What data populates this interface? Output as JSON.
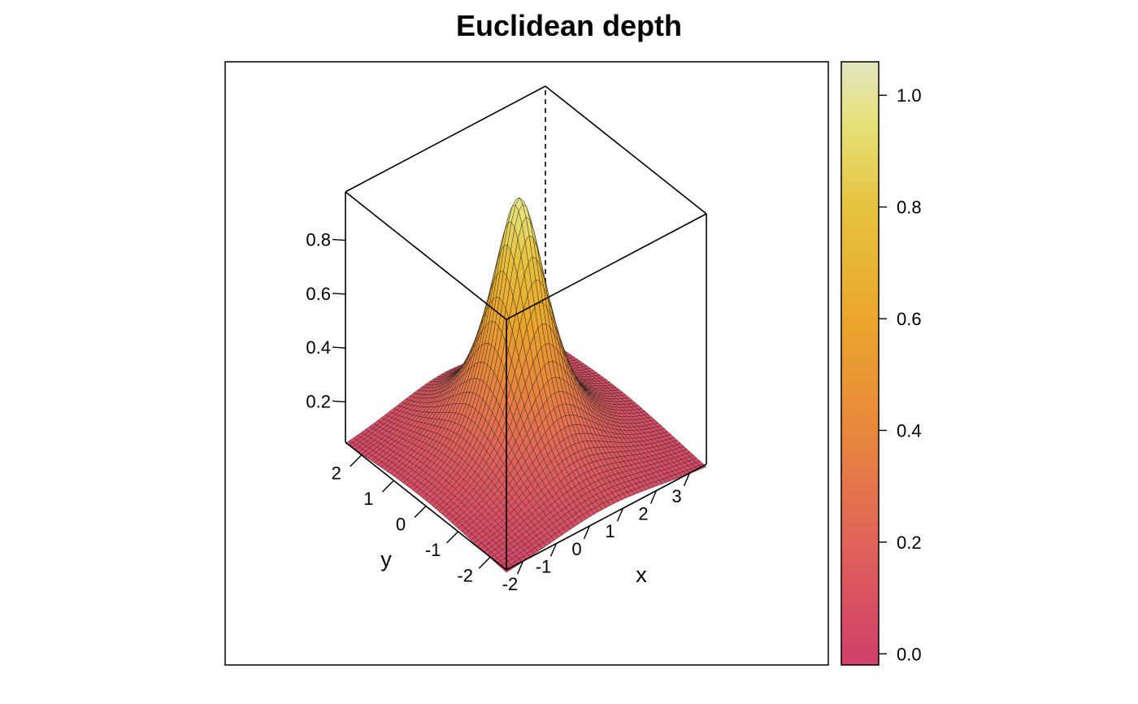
{
  "chart_data": {
    "type": "surface3d",
    "title": "Euclidean depth",
    "xlabel": "x",
    "ylabel": "y",
    "zlabel": "",
    "x_range": [
      -2.5,
      3.5
    ],
    "y_range": [
      -2.5,
      2.5
    ],
    "z_range": [
      0.05,
      0.98
    ],
    "x_ticks": [
      -2,
      -1,
      0,
      1,
      2,
      3
    ],
    "y_ticks": [
      -2,
      -1,
      0,
      1,
      2
    ],
    "z_ticks": [
      0.2,
      0.4,
      0.6,
      0.8
    ],
    "x_tick_labels": [
      "-2",
      "-1",
      "0",
      "1",
      "2",
      "3"
    ],
    "y_tick_labels": [
      "-2",
      "-1",
      "0",
      "1",
      "2"
    ],
    "z_tick_labels": [
      "0.2",
      "0.4",
      "0.6",
      "0.8"
    ],
    "surface": {
      "description_function": "Euclidean depth",
      "center": [
        0.5,
        0.2
      ],
      "peak": 0.98,
      "grid_size": 50
    },
    "colorbar": {
      "ticks": [
        0.0,
        0.2,
        0.4,
        0.6,
        0.8,
        1.0
      ],
      "tick_labels": [
        "0.0",
        "0.2",
        "0.4",
        "0.6",
        "0.8",
        "1.0"
      ],
      "range": [
        -0.02,
        1.06
      ],
      "color_stops": [
        {
          "value": 0.0,
          "color": "#d2426a"
        },
        {
          "value": 0.2,
          "color": "#e0635a"
        },
        {
          "value": 0.4,
          "color": "#e8873b"
        },
        {
          "value": 0.6,
          "color": "#eaa62c"
        },
        {
          "value": 0.8,
          "color": "#e6c23f"
        },
        {
          "value": 0.95,
          "color": "#e5e27a"
        },
        {
          "value": 1.06,
          "color": "#e2e5c0"
        }
      ]
    }
  }
}
